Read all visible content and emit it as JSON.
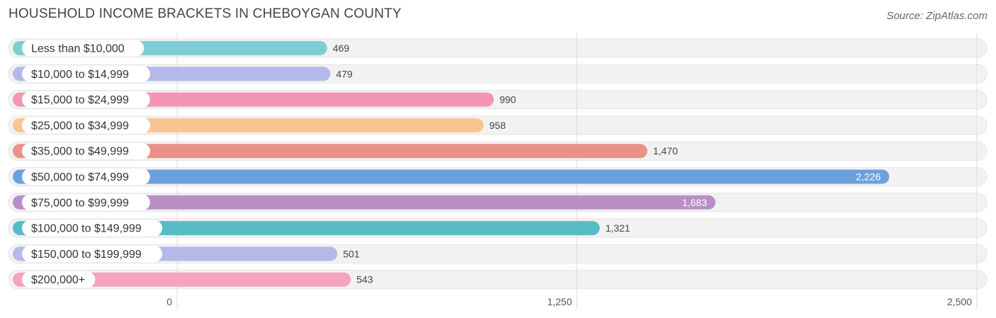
{
  "header": {
    "title": "HOUSEHOLD INCOME BRACKETS IN CHEBOYGAN COUNTY",
    "source": "Source: ZipAtlas.com"
  },
  "chart_data": {
    "type": "bar",
    "orientation": "horizontal",
    "title": "HOUSEHOLD INCOME BRACKETS IN CHEBOYGAN COUNTY",
    "categories": [
      "Less than $10,000",
      "$10,000 to $14,999",
      "$15,000 to $24,999",
      "$25,000 to $34,999",
      "$35,000 to $49,999",
      "$50,000 to $74,999",
      "$75,000 to $99,999",
      "$100,000 to $149,999",
      "$150,000 to $199,999",
      "$200,000+"
    ],
    "values": [
      469,
      479,
      990,
      958,
      1470,
      2226,
      1683,
      1321,
      501,
      543
    ],
    "value_labels": [
      "469",
      "479",
      "990",
      "958",
      "1,470",
      "2,226",
      "1,683",
      "1,321",
      "501",
      "543"
    ],
    "colors": [
      "#7ecdd5",
      "#b4b9ea",
      "#f595b4",
      "#f9c592",
      "#ea918a",
      "#6aa0df",
      "#ba8fc5",
      "#58bcc6",
      "#b4b9ea",
      "#f5a3c0"
    ],
    "xlim": [
      0,
      2500
    ],
    "xticks": [
      0,
      1250,
      2500
    ],
    "xtick_labels": [
      "0",
      "1,250",
      "2,500"
    ],
    "grid": true
  }
}
